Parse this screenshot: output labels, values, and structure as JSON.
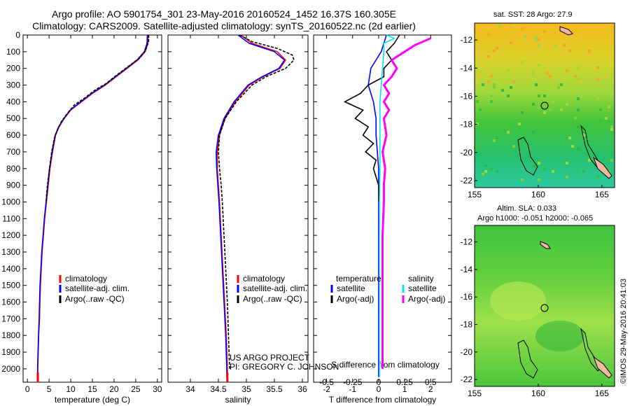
{
  "header": {
    "line1": "Argo profile: AO 5901754_301 23-May-2016 20160524_1452 16.37S 160.305E",
    "line2": "Climatology: CARS2009. Satellite-adjusted climatology: synTS_20160522.nc (2d earlier)"
  },
  "credit": {
    "line1": "US ARGO PROJECT",
    "line2": "PI: GREGORY C. JOHNSON"
  },
  "stamp": "©IMOS 29-May-2016 20:41:03",
  "colors": {
    "climatology": "#ff0000",
    "satellite": "#0000ff",
    "argo": "#000000",
    "sal_satellite": "#00e5ee",
    "sal_argo": "#ff00ff"
  },
  "chart_data": [
    {
      "type": "line",
      "id": "temperature",
      "xlabel": "temperature (deg C)",
      "ylabel": "",
      "xlim": [
        -1,
        31
      ],
      "ylim": [
        2080,
        0
      ],
      "xticks": [
        0,
        5,
        10,
        15,
        20,
        25,
        30
      ],
      "yticks": [
        0,
        100,
        200,
        300,
        400,
        500,
        600,
        700,
        800,
        900,
        1000,
        1100,
        1200,
        1300,
        1400,
        1500,
        1600,
        1700,
        1800,
        1900,
        2000
      ],
      "grid": false,
      "legend": {
        "position": "lower-center",
        "items": [
          "climatology",
          "satellite-adj. clim.",
          "Argo(..raw -QC)"
        ]
      },
      "series": [
        {
          "name": "climatology",
          "color": "#ff0000",
          "points": [
            [
              27.9,
              0
            ],
            [
              27.8,
              50
            ],
            [
              27.2,
              100
            ],
            [
              25.5,
              150
            ],
            [
              23.0,
              200
            ],
            [
              20.5,
              250
            ],
            [
              18.0,
              300
            ],
            [
              15.0,
              350
            ],
            [
              12.5,
              400
            ],
            [
              10.0,
              450
            ],
            [
              8.5,
              500
            ],
            [
              7.3,
              550
            ],
            [
              6.5,
              600
            ],
            [
              5.8,
              700
            ],
            [
              5.2,
              800
            ],
            [
              4.8,
              900
            ],
            [
              4.4,
              1000
            ],
            [
              4.0,
              1100
            ],
            [
              3.7,
              1200
            ],
            [
              3.4,
              1300
            ],
            [
              3.2,
              1400
            ],
            [
              3.0,
              1500
            ],
            [
              2.9,
              1600
            ],
            [
              2.8,
              1700
            ],
            [
              2.6,
              1800
            ],
            [
              2.5,
              1900
            ],
            [
              2.4,
              2000
            ],
            [
              2.4,
              2050
            ]
          ]
        },
        {
          "name": "satellite-adj. clim.",
          "color": "#0000ff",
          "points": [
            [
              27.7,
              0
            ],
            [
              27.6,
              50
            ],
            [
              27.0,
              100
            ],
            [
              25.3,
              150
            ],
            [
              22.8,
              200
            ],
            [
              20.3,
              250
            ],
            [
              17.8,
              300
            ],
            [
              14.8,
              350
            ],
            [
              12.3,
              400
            ],
            [
              9.9,
              450
            ],
            [
              8.4,
              500
            ],
            [
              7.2,
              550
            ],
            [
              6.4,
              600
            ],
            [
              5.7,
              700
            ],
            [
              5.1,
              800
            ],
            [
              4.7,
              900
            ],
            [
              4.3,
              1000
            ],
            [
              3.9,
              1100
            ],
            [
              3.6,
              1200
            ],
            [
              3.3,
              1300
            ],
            [
              3.1,
              1400
            ],
            [
              2.9,
              1500
            ],
            [
              2.8,
              1600
            ],
            [
              2.7,
              1700
            ],
            [
              2.55,
              1800
            ],
            [
              2.45,
              1900
            ],
            [
              2.35,
              2000
            ],
            [
              2.35,
              2050
            ]
          ]
        },
        {
          "name": "Argo(..raw -QC)",
          "color": "#000000",
          "points": [
            [
              28.0,
              0
            ],
            [
              28.0,
              40
            ],
            [
              27.3,
              90
            ],
            [
              25.8,
              140
            ],
            [
              23.2,
              190
            ],
            [
              20.6,
              240
            ],
            [
              18.2,
              290
            ],
            [
              15.6,
              330
            ],
            [
              13.1,
              380
            ],
            [
              10.8,
              420
            ],
            [
              9.2,
              470
            ],
            [
              7.8,
              520
            ],
            [
              6.9,
              570
            ],
            [
              6.2,
              620
            ],
            [
              5.6,
              700
            ],
            [
              5.1,
              800
            ],
            [
              4.6,
              900
            ],
            [
              4.3,
              1000
            ]
          ]
        }
      ]
    },
    {
      "type": "line",
      "id": "salinity",
      "xlabel": "salinity",
      "ylabel": "",
      "xlim": [
        33.6,
        36.1
      ],
      "ylim": [
        2080,
        0
      ],
      "xticks": [
        34,
        34.5,
        35,
        35.5,
        36
      ],
      "grid": false,
      "legend": {
        "position": "lower-center",
        "items": [
          "climatology",
          "satellite-adj. clim.",
          "Argo(..raw -QC)"
        ]
      },
      "series": [
        {
          "name": "climatology",
          "color": "#ff0000",
          "points": [
            [
              34.9,
              0
            ],
            [
              35.1,
              50
            ],
            [
              35.55,
              100
            ],
            [
              35.7,
              150
            ],
            [
              35.6,
              200
            ],
            [
              35.3,
              250
            ],
            [
              35.05,
              300
            ],
            [
              34.8,
              400
            ],
            [
              34.62,
              500
            ],
            [
              34.52,
              600
            ],
            [
              34.48,
              700
            ],
            [
              34.48,
              800
            ],
            [
              34.5,
              900
            ],
            [
              34.52,
              1000
            ],
            [
              34.55,
              1200
            ],
            [
              34.58,
              1400
            ],
            [
              34.61,
              1600
            ],
            [
              34.64,
              1800
            ],
            [
              34.66,
              2000
            ],
            [
              34.66,
              2050
            ]
          ]
        },
        {
          "name": "satellite-adj. clim.",
          "color": "#0000ff",
          "points": [
            [
              34.85,
              0
            ],
            [
              35.05,
              50
            ],
            [
              35.5,
              100
            ],
            [
              35.68,
              150
            ],
            [
              35.58,
              200
            ],
            [
              35.28,
              250
            ],
            [
              35.03,
              300
            ],
            [
              34.78,
              400
            ],
            [
              34.6,
              500
            ],
            [
              34.5,
              600
            ],
            [
              34.46,
              700
            ],
            [
              34.47,
              800
            ],
            [
              34.49,
              900
            ],
            [
              34.51,
              1000
            ],
            [
              34.54,
              1200
            ],
            [
              34.57,
              1400
            ],
            [
              34.6,
              1600
            ],
            [
              34.63,
              1800
            ],
            [
              34.65,
              2000
            ],
            [
              34.65,
              2050
            ]
          ]
        },
        {
          "name": "Argo(..raw -QC)",
          "color": "#000000",
          "points": [
            [
              34.88,
              0
            ],
            [
              35.1,
              40
            ],
            [
              35.55,
              80
            ],
            [
              35.82,
              120
            ],
            [
              35.85,
              150
            ],
            [
              35.7,
              200
            ],
            [
              35.35,
              250
            ],
            [
              35.1,
              300
            ],
            [
              34.82,
              400
            ],
            [
              34.62,
              500
            ],
            [
              34.52,
              600
            ],
            [
              34.5,
              700
            ],
            [
              34.52,
              800
            ],
            [
              34.55,
              900
            ],
            [
              34.57,
              1000
            ],
            [
              34.6,
              1200
            ],
            [
              34.63,
              1400
            ],
            [
              34.66,
              1600
            ],
            [
              34.68,
              1800
            ],
            [
              34.7,
              2000
            ]
          ]
        }
      ]
    },
    {
      "type": "line",
      "id": "difference",
      "xlabel": "T difference from climatology",
      "xlabel_top": "S difference from climatology",
      "ylabel": "",
      "xlim": [
        -2.5,
        2.8
      ],
      "ylim": [
        2080,
        0
      ],
      "xticks": [
        -2,
        -1,
        0,
        1,
        2
      ],
      "xticks_s": [
        -0.5,
        -0.25,
        0,
        0.25,
        0.5
      ],
      "grid": false,
      "legend": {
        "position": "lower-center",
        "items": [
          "temperature",
          "satellite",
          "Argo(-adj)",
          "salinity",
          "satellite",
          "Argo(-adj)"
        ]
      },
      "series": [
        {
          "name": "satellite",
          "color": "#0000ff",
          "points": [
            [
              0.3,
              0
            ],
            [
              0.1,
              100
            ],
            [
              -0.3,
              200
            ],
            [
              -0.4,
              300
            ],
            [
              -0.2,
              400
            ],
            [
              -0.1,
              500
            ],
            [
              -0.1,
              600
            ],
            [
              -0.05,
              700
            ],
            [
              0,
              800
            ],
            [
              0,
              1000
            ],
            [
              0,
              1200
            ],
            [
              0,
              1400
            ],
            [
              0,
              1600
            ],
            [
              0,
              1800
            ],
            [
              0,
              2000
            ],
            [
              0,
              2050
            ]
          ]
        },
        {
          "name": "Argo(-adj)",
          "color": "#000000",
          "points": [
            [
              0.8,
              0
            ],
            [
              0.6,
              50
            ],
            [
              0.3,
              100
            ],
            [
              0.5,
              150
            ],
            [
              0.2,
              200
            ],
            [
              0.2,
              250
            ],
            [
              -0.4,
              300
            ],
            [
              -0.7,
              350
            ],
            [
              -1.3,
              400
            ],
            [
              -0.6,
              450
            ],
            [
              -0.9,
              500
            ],
            [
              -0.4,
              550
            ],
            [
              -0.6,
              600
            ],
            [
              -0.2,
              650
            ],
            [
              -0.5,
              700
            ],
            [
              -0.1,
              750
            ],
            [
              -0.2,
              800
            ],
            [
              0,
              900
            ],
            [
              0,
              1000
            ]
          ]
        },
        {
          "name": "satellite",
          "color": "#00e5ee",
          "points": [
            [
              0.3,
              0
            ],
            [
              0.6,
              20
            ],
            [
              0.2,
              50
            ],
            [
              0.2,
              100
            ],
            [
              0.15,
              200
            ],
            [
              0.1,
              300
            ],
            [
              0.05,
              400
            ],
            [
              0.05,
              600
            ],
            [
              0.05,
              800
            ],
            [
              0.03,
              1000
            ],
            [
              0.03,
              2000
            ],
            [
              0.03,
              2050
            ]
          ]
        },
        {
          "name": "Argo(-adj)",
          "color": "#ff00ff",
          "points": [
            [
              2.0,
              20
            ],
            [
              1.4,
              60
            ],
            [
              1.0,
              100
            ],
            [
              0.5,
              150
            ],
            [
              0.7,
              200
            ],
            [
              0.5,
              250
            ],
            [
              0.2,
              300
            ],
            [
              0.4,
              350
            ],
            [
              0.2,
              400
            ],
            [
              0.4,
              450
            ],
            [
              0.2,
              500
            ],
            [
              0.3,
              600
            ],
            [
              0.15,
              700
            ],
            [
              0.25,
              800
            ],
            [
              0.2,
              900
            ],
            [
              0.2,
              1000
            ],
            [
              0.15,
              1200
            ],
            [
              0.15,
              1400
            ],
            [
              0.15,
              1600
            ],
            [
              0.15,
              1800
            ],
            [
              0.15,
              2000
            ]
          ]
        }
      ]
    },
    {
      "type": "heatmap",
      "id": "sst-map",
      "title": "sat. SST: 28 Argo: 27.9",
      "xlim": [
        155,
        166
      ],
      "ylim": [
        -22.5,
        -10.8
      ],
      "xticks": [
        155,
        160,
        165
      ],
      "yticks": [
        -12,
        -14,
        -16,
        -18,
        -20,
        -22
      ],
      "argo_position": {
        "lon": 160.305,
        "lat": -16.37
      }
    },
    {
      "type": "heatmap",
      "id": "sla-map",
      "title": "Altim. SLA: 0.033",
      "subtitle": "Argo h1000: -0.051 h2000: -0.065",
      "xlim": [
        155,
        166
      ],
      "ylim": [
        -22.5,
        -10.8
      ],
      "xticks": [
        155,
        160,
        165
      ],
      "yticks": [
        -12,
        -14,
        -16,
        -18,
        -20,
        -22
      ],
      "argo_position": {
        "lon": 160.305,
        "lat": -16.37
      }
    }
  ]
}
